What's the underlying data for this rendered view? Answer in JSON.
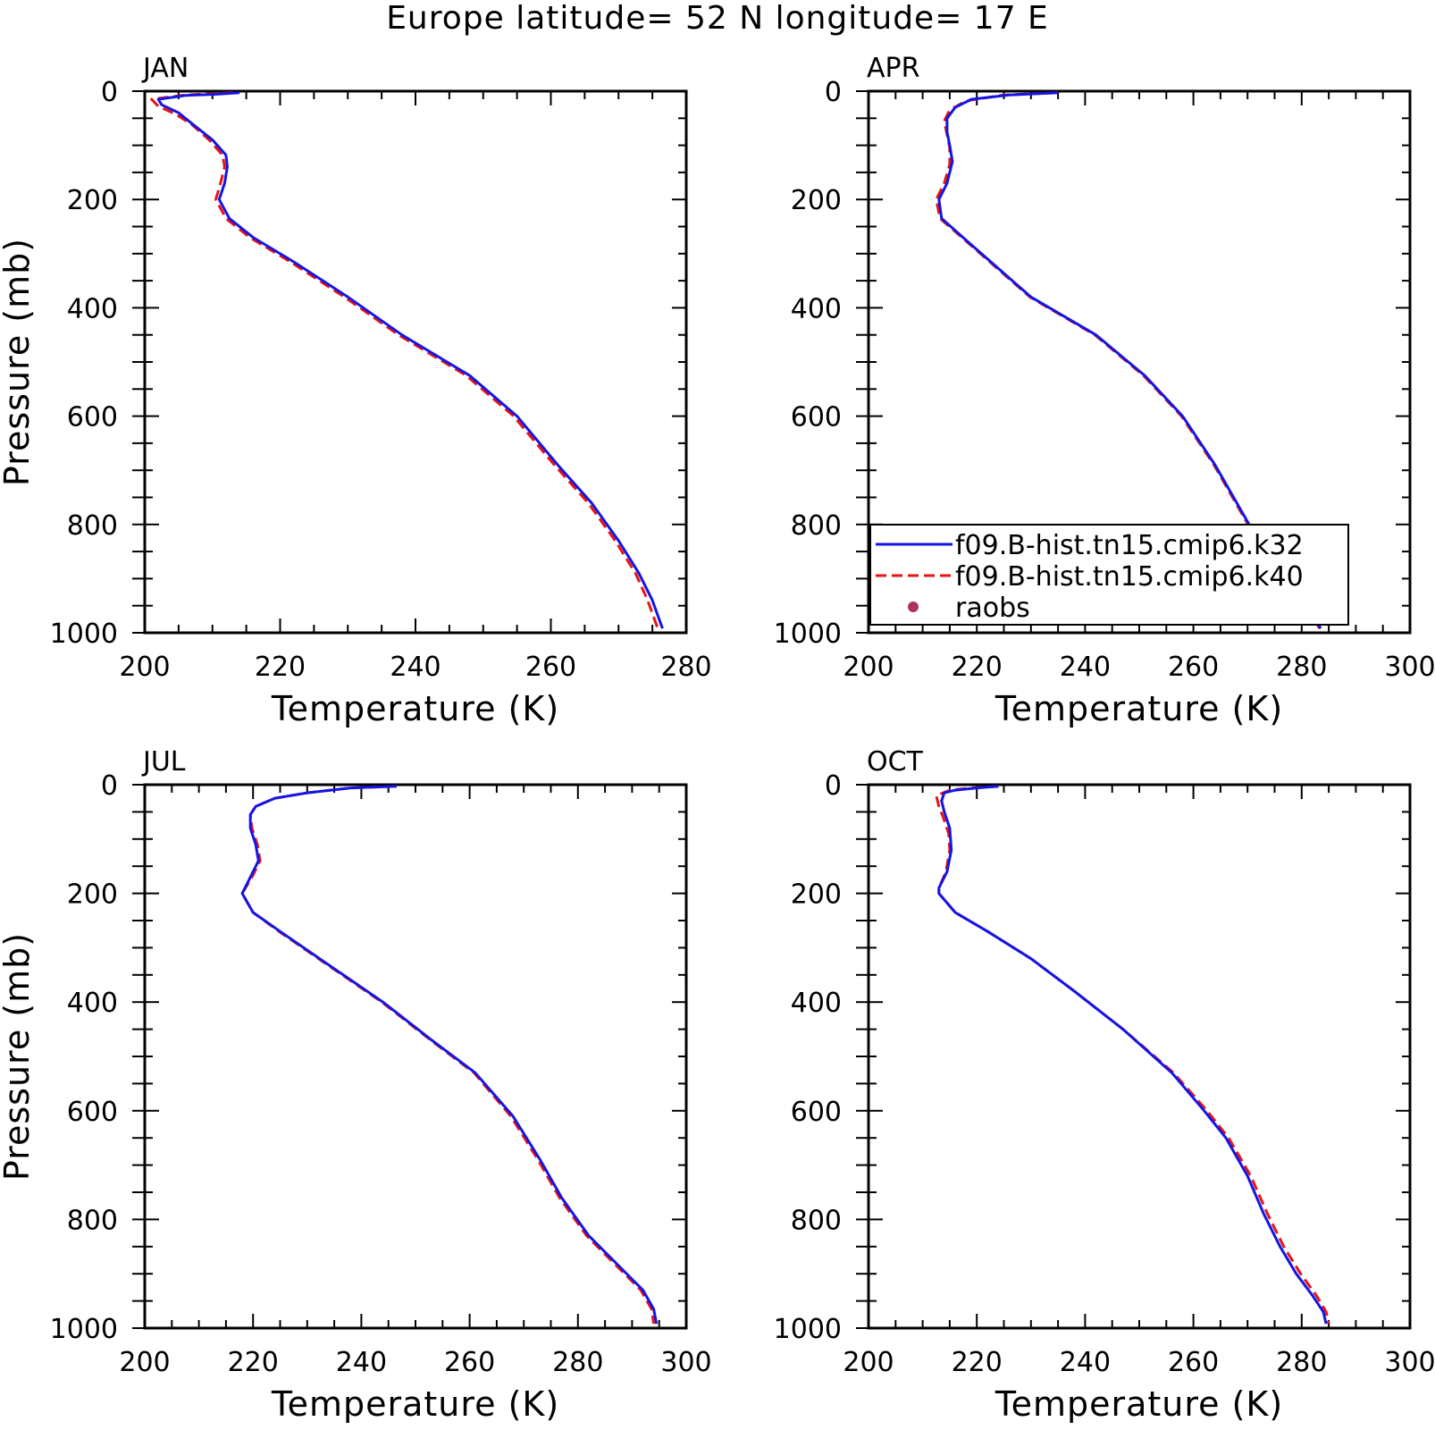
{
  "figure": {
    "title": "Europe  latitude= 52 N longitude= 17 E"
  },
  "colors": {
    "k32": "#1414e6",
    "k40": "#e81414",
    "raobs": "#b03060",
    "axis": "#000000"
  },
  "chart_data": [
    {
      "type": "line",
      "panel": "JAN",
      "xlabel": "Temperature (K)",
      "ylabel": "Pressure (mb)",
      "xlim": [
        200,
        280
      ],
      "ylim": [
        1000,
        0
      ],
      "xticks": [
        200,
        220,
        240,
        260,
        280
      ],
      "yticks": [
        0,
        200,
        400,
        600,
        800,
        1000
      ],
      "series": [
        {
          "name": "f09.B-hist.tn15.cmip6.k32",
          "style": "solid",
          "points": [
            [
              214,
              3
            ],
            [
              210,
              6
            ],
            [
              206,
              8
            ],
            [
              202,
              15
            ],
            [
              202.5,
              25
            ],
            [
              205,
              40
            ],
            [
              207,
              60
            ],
            [
              210,
              90
            ],
            [
              212,
              118
            ],
            [
              212.2,
              140
            ],
            [
              211.8,
              170
            ],
            [
              211,
              200
            ],
            [
              212.5,
              235
            ],
            [
              216,
              270
            ],
            [
              222,
              315
            ],
            [
              230,
              380
            ],
            [
              238,
              450
            ],
            [
              248,
              525
            ],
            [
              255,
              600
            ],
            [
              261,
              690
            ],
            [
              266,
              760
            ],
            [
              270,
              830
            ],
            [
              273,
              890
            ],
            [
              275,
              940
            ],
            [
              276,
              975
            ],
            [
              276.5,
              992
            ]
          ]
        },
        {
          "name": "f09.B-hist.tn15.cmip6.k40",
          "style": "dashed",
          "points": [
            [
              213,
              3
            ],
            [
              206,
              7
            ],
            [
              201,
              15
            ],
            [
              202,
              28
            ],
            [
              204.5,
              42
            ],
            [
              207,
              62
            ],
            [
              209.5,
              90
            ],
            [
              211.5,
              118
            ],
            [
              211.8,
              140
            ],
            [
              211.2,
              170
            ],
            [
              210.5,
              200
            ],
            [
              212,
              235
            ],
            [
              215.5,
              270
            ],
            [
              221.5,
              315
            ],
            [
              229.5,
              380
            ],
            [
              237.5,
              450
            ],
            [
              247.5,
              525
            ],
            [
              254.5,
              600
            ],
            [
              260.5,
              690
            ],
            [
              265.5,
              760
            ],
            [
              269.5,
              830
            ],
            [
              272.5,
              890
            ],
            [
              274.3,
              940
            ],
            [
              275.3,
              975
            ],
            [
              275.8,
              992
            ]
          ]
        }
      ]
    },
    {
      "type": "line",
      "panel": "APR",
      "xlabel": "Temperature (K)",
      "ylabel": "",
      "xlim": [
        200,
        300
      ],
      "ylim": [
        1000,
        0
      ],
      "xticks": [
        200,
        220,
        240,
        260,
        280,
        300
      ],
      "yticks": [
        0,
        200,
        400,
        600,
        800,
        1000
      ],
      "legend": {
        "placement": "bottom-left"
      },
      "series": [
        {
          "name": "f09.B-hist.tn15.cmip6.k32",
          "style": "solid",
          "points": [
            [
              235,
              3
            ],
            [
              226,
              7
            ],
            [
              219,
              15
            ],
            [
              216,
              30
            ],
            [
              214.5,
              50
            ],
            [
              214.5,
              75
            ],
            [
              215,
              100
            ],
            [
              215.5,
              130
            ],
            [
              214.5,
              170
            ],
            [
              213,
              200
            ],
            [
              213.5,
              235
            ],
            [
              218,
              275
            ],
            [
              230,
              380
            ],
            [
              242,
              450
            ],
            [
              251,
              525
            ],
            [
              258,
              600
            ],
            [
              264,
              690
            ],
            [
              268,
              760
            ],
            [
              272,
              830
            ],
            [
              275,
              885
            ],
            [
              279,
              935
            ],
            [
              282,
              965
            ],
            [
              283.5,
              992
            ]
          ]
        },
        {
          "name": "f09.B-hist.tn15.cmip6.k40",
          "style": "dashed",
          "points": [
            [
              235,
              3
            ],
            [
              225,
              7
            ],
            [
              218,
              18
            ],
            [
              215,
              35
            ],
            [
              214,
              55
            ],
            [
              214.5,
              80
            ],
            [
              215,
              105
            ],
            [
              215,
              135
            ],
            [
              214,
              170
            ],
            [
              212.5,
              200
            ],
            [
              213.2,
              235
            ],
            [
              217.8,
              275
            ],
            [
              229.8,
              380
            ],
            [
              241.8,
              450
            ],
            [
              250.8,
              525
            ],
            [
              257.8,
              600
            ],
            [
              263.8,
              690
            ],
            [
              267.8,
              760
            ],
            [
              271.8,
              830
            ],
            [
              274.8,
              885
            ],
            [
              278.8,
              935
            ],
            [
              281.8,
              965
            ],
            [
              283.3,
              992
            ]
          ]
        },
        {
          "name": "raobs",
          "style": "marker",
          "points": []
        }
      ]
    },
    {
      "type": "line",
      "panel": "JUL",
      "xlabel": "Temperature (K)",
      "ylabel": "Pressure (mb)",
      "xlim": [
        200,
        300
      ],
      "ylim": [
        1000,
        0
      ],
      "xticks": [
        200,
        220,
        240,
        260,
        280,
        300
      ],
      "yticks": [
        0,
        200,
        400,
        600,
        800,
        1000
      ],
      "series": [
        {
          "name": "f09.B-hist.tn15.cmip6.k32",
          "style": "solid",
          "points": [
            [
              246.5,
              3
            ],
            [
              238,
              6
            ],
            [
              230,
              15
            ],
            [
              224,
              25
            ],
            [
              220.5,
              40
            ],
            [
              219.5,
              55
            ],
            [
              219.5,
              80
            ],
            [
              220.5,
              110
            ],
            [
              221,
              140
            ],
            [
              219.5,
              170
            ],
            [
              218,
              200
            ],
            [
              220,
              235
            ],
            [
              225,
              270
            ],
            [
              233,
              325
            ],
            [
              244,
              400
            ],
            [
              253,
              470
            ],
            [
              261,
              530
            ],
            [
              268,
              610
            ],
            [
              273,
              690
            ],
            [
              277,
              760
            ],
            [
              282,
              830
            ],
            [
              287,
              880
            ],
            [
              292,
              930
            ],
            [
              294,
              965
            ],
            [
              294.5,
              992
            ]
          ]
        },
        {
          "name": "f09.B-hist.tn15.cmip6.k40",
          "style": "dashed",
          "points": [
            [
              246.5,
              3
            ],
            [
              238,
              6
            ],
            [
              230,
              15
            ],
            [
              224,
              25
            ],
            [
              220.5,
              40
            ],
            [
              219.5,
              55
            ],
            [
              219.8,
              80
            ],
            [
              220.8,
              110
            ],
            [
              221.3,
              140
            ],
            [
              219.8,
              170
            ],
            [
              218,
              200
            ],
            [
              220,
              235
            ],
            [
              224.8,
              270
            ],
            [
              232.8,
              325
            ],
            [
              243.8,
              400
            ],
            [
              252.8,
              470
            ],
            [
              260.8,
              530
            ],
            [
              267.6,
              610
            ],
            [
              272.6,
              690
            ],
            [
              276.6,
              760
            ],
            [
              281.6,
              830
            ],
            [
              286.6,
              880
            ],
            [
              291.6,
              930
            ],
            [
              293.6,
              965
            ],
            [
              294,
              992
            ]
          ]
        }
      ]
    },
    {
      "type": "line",
      "panel": "OCT",
      "xlabel": "Temperature (K)",
      "ylabel": "",
      "xlim": [
        200,
        300
      ],
      "ylim": [
        1000,
        0
      ],
      "xticks": [
        200,
        220,
        240,
        260,
        280,
        300
      ],
      "yticks": [
        0,
        200,
        400,
        600,
        800,
        1000
      ],
      "series": [
        {
          "name": "f09.B-hist.tn15.cmip6.k32",
          "style": "solid",
          "points": [
            [
              224,
              3
            ],
            [
              220,
              6
            ],
            [
              216,
              10
            ],
            [
              214,
              15
            ],
            [
              213.5,
              30
            ],
            [
              214,
              50
            ],
            [
              215,
              80
            ],
            [
              215.3,
              120
            ],
            [
              214.5,
              160
            ],
            [
              213,
              190
            ],
            [
              213,
              200
            ],
            [
              216,
              235
            ],
            [
              222,
              270
            ],
            [
              230,
              320
            ],
            [
              238,
              380
            ],
            [
              247,
              450
            ],
            [
              256,
              530
            ],
            [
              262,
              600
            ],
            [
              266,
              650
            ],
            [
              270,
              720
            ],
            [
              273,
              790
            ],
            [
              276,
              850
            ],
            [
              279,
              900
            ],
            [
              282,
              940
            ],
            [
              284,
              970
            ],
            [
              284.5,
              992
            ]
          ]
        },
        {
          "name": "f09.B-hist.tn15.cmip6.k40",
          "style": "dashed",
          "points": [
            [
              224,
              3
            ],
            [
              219,
              6
            ],
            [
              215,
              10
            ],
            [
              212.5,
              20
            ],
            [
              213,
              40
            ],
            [
              213.8,
              60
            ],
            [
              214.8,
              90
            ],
            [
              215,
              120
            ],
            [
              214.3,
              160
            ],
            [
              213,
              190
            ],
            [
              213,
              200
            ],
            [
              216,
              235
            ],
            [
              222,
              270
            ],
            [
              230,
              320
            ],
            [
              238,
              380
            ],
            [
              247,
              450
            ],
            [
              256.3,
              530
            ],
            [
              262.5,
              600
            ],
            [
              266.5,
              650
            ],
            [
              270.6,
              720
            ],
            [
              273.7,
              790
            ],
            [
              276.7,
              850
            ],
            [
              279.8,
              900
            ],
            [
              282.7,
              940
            ],
            [
              284.5,
              970
            ],
            [
              285,
              992
            ]
          ]
        }
      ]
    }
  ]
}
